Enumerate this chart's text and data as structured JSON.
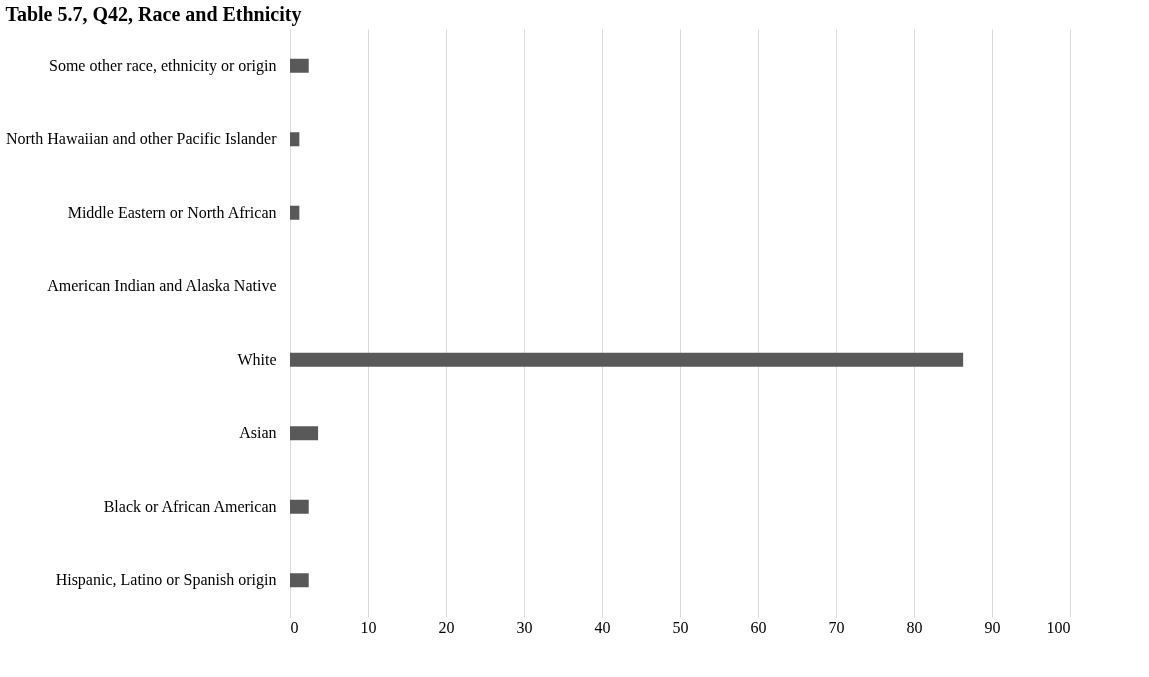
{
  "chart_data": {
    "type": "bar",
    "orientation": "horizontal",
    "title": "Table 5.7, Q42, Race and Ethnicity",
    "categories": [
      "Some other race, ethnicity or origin",
      "North Hawaiian and other Pacific Islander",
      "Middle Eastern or North African",
      "American Indian and Alaska Native",
      "White",
      "Asian",
      "Black or African American",
      "Hispanic, Latino or Spanish origin"
    ],
    "values": [
      2.4,
      1.2,
      1.2,
      0,
      86.3,
      3.6,
      2.4,
      2.4
    ],
    "color": "#595959",
    "xlim": [
      0,
      100
    ],
    "xticks": [
      0,
      10,
      20,
      30,
      40,
      50,
      60,
      70,
      80,
      90,
      100
    ],
    "grid": "x"
  }
}
